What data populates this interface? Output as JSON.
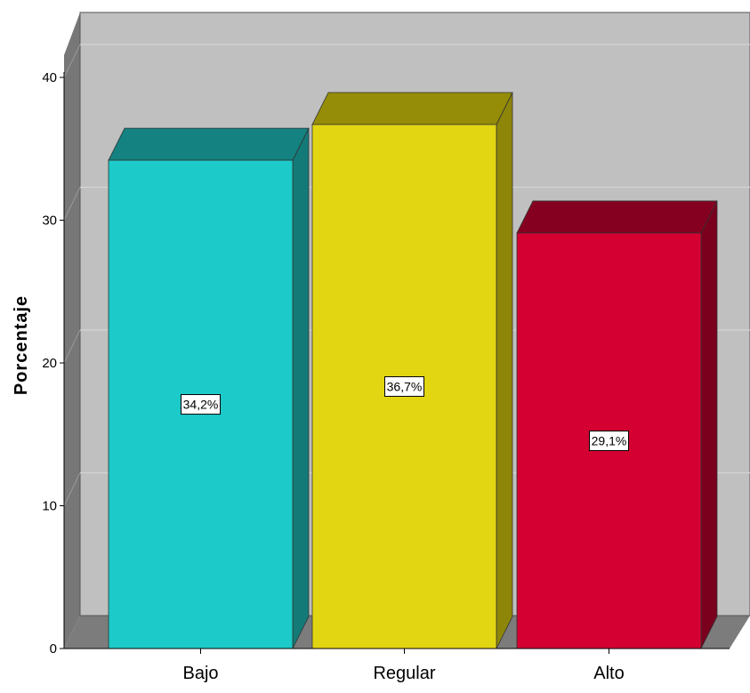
{
  "chart_data": {
    "type": "bar",
    "title": "",
    "xlabel": "",
    "ylabel": "Porcentaje",
    "categories": [
      "Bajo",
      "Regular",
      "Alto"
    ],
    "values": [
      34.2,
      36.7,
      29.1
    ],
    "data_labels": [
      "34,2%",
      "36,7%",
      "29,1%"
    ],
    "ylim": [
      0,
      40
    ],
    "yticks": [
      0,
      10,
      20,
      30,
      40
    ],
    "ytick_labels": [
      "0",
      "10",
      "20",
      "30",
      "40"
    ],
    "grid": true,
    "style": "3d",
    "colors": {
      "Bajo": {
        "front": "#1ccbc9",
        "side": "#137a77",
        "top": "#138280"
      },
      "Regular": {
        "front": "#e2d512",
        "side": "#8e8609",
        "top": "#958c08"
      },
      "Alto": {
        "front": "#d30031",
        "side": "#7a001e",
        "top": "#850020"
      },
      "plot_back": "#c0c0c0",
      "plot_wall": "#777777",
      "plot_floor": "#7c7c7c",
      "gridline": "#d4d4d4"
    }
  }
}
